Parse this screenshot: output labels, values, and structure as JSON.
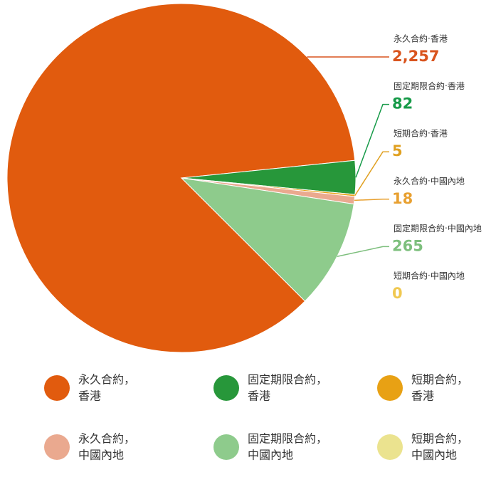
{
  "chart_data": {
    "type": "pie",
    "categories": [
      "永久合約‧香港",
      "固定期限合約‧香港",
      "短期合約‧香港",
      "永久合約‧中國內地",
      "固定期限合約‧中國內地",
      "短期合約‧中國內地"
    ],
    "values": [
      2257,
      82,
      5,
      18,
      265,
      0
    ],
    "value_labels": [
      "2,257",
      "82",
      "5",
      "18",
      "265",
      "0"
    ],
    "colors": [
      "#e15b0e",
      "#27973a",
      "#e8a114",
      "#eaa98f",
      "#8ecb8c",
      "#ebe38f"
    ],
    "value_label_colors": [
      "#d9541e",
      "#169a48",
      "#e0a020",
      "#e8a030",
      "#7dbf7d",
      "#f0c850"
    ],
    "legend_labels": [
      [
        "永久合約，",
        "香港"
      ],
      [
        "固定期限合約，",
        "香港"
      ],
      [
        "短期合約，",
        "香港"
      ],
      [
        "永久合約，",
        "中國內地"
      ],
      [
        "固定期限合約，",
        "中國內地"
      ],
      [
        "短期合約，",
        "中國內地"
      ]
    ]
  }
}
